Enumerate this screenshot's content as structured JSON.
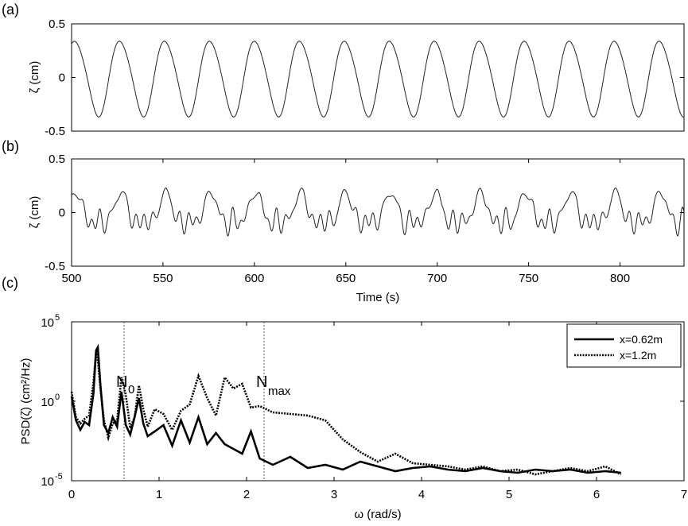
{
  "chart_data": [
    {
      "panel": "(a)",
      "type": "line",
      "ylabel": "ζ (cm)",
      "xlim": [
        500,
        835
      ],
      "ylim": [
        -0.5,
        0.5
      ],
      "yticks": [
        "0.5",
        "0",
        "-0.5"
      ],
      "ytick_values": [
        0.5,
        0,
        -0.5
      ],
      "series": [
        {
          "period_s": 24.6,
          "amplitude_cm": 0.35,
          "phase_start_s": 496,
          "x_range": [
            500,
            835
          ],
          "color": "#222222"
        }
      ]
    },
    {
      "panel": "(b)",
      "type": "line",
      "ylabel": "ζ (cm)",
      "xlabel": "Time (s)",
      "xlim": [
        500,
        835
      ],
      "ylim": [
        -0.5,
        0.5
      ],
      "yticks": [
        "0.5",
        "0",
        "-0.5"
      ],
      "ytick_values": [
        0.5,
        0,
        -0.5
      ],
      "xticks": [
        "500",
        "550",
        "600",
        "650",
        "700",
        "750",
        "800"
      ],
      "xtick_values": [
        500,
        550,
        600,
        650,
        700,
        750,
        800
      ],
      "series": [
        {
          "period_s": 24.6,
          "amplitude_cm": 0.22,
          "x_range": [
            500,
            835
          ],
          "color": "#222222"
        }
      ]
    },
    {
      "panel": "(c)",
      "type": "line",
      "xlabel": "ω (rad/s)",
      "ylabel": "PSD(ζ) (cm²/Hz)",
      "xlim": [
        0,
        7
      ],
      "ylim_log10": [
        -5,
        5
      ],
      "yscale": "log",
      "xticks": [
        "0",
        "1",
        "2",
        "3",
        "4",
        "5",
        "6",
        "7"
      ],
      "xtick_values": [
        0,
        1,
        2,
        3,
        4,
        5,
        6,
        7
      ],
      "yticks": [
        "10",
        "10",
        "10"
      ],
      "ytick_exponents": [
        "5",
        "0",
        "-5"
      ],
      "ytick_values_log10": [
        5,
        0,
        -5
      ],
      "vlines": [
        {
          "x": 0.6,
          "label": "N",
          "sub": "0"
        },
        {
          "x": 2.2,
          "label": "N",
          "sub": "max"
        }
      ],
      "legend": {
        "placement": "top-right"
      },
      "series": [
        {
          "name": "x=0.62m",
          "style": "solid",
          "x": [
            0.0,
            0.05,
            0.1,
            0.15,
            0.2,
            0.25,
            0.28,
            0.3,
            0.33,
            0.37,
            0.42,
            0.47,
            0.52,
            0.57,
            0.62,
            0.67,
            0.72,
            0.77,
            0.82,
            0.87,
            0.95,
            1.05,
            1.15,
            1.25,
            1.35,
            1.45,
            1.55,
            1.65,
            1.75,
            1.85,
            1.95,
            2.05,
            2.15,
            2.3,
            2.5,
            2.7,
            2.9,
            3.1,
            3.3,
            3.5,
            3.7,
            3.9,
            4.1,
            4.3,
            4.5,
            4.7,
            4.9,
            5.1,
            5.3,
            5.5,
            5.7,
            5.9,
            6.1,
            6.28
          ],
          "log10_y": [
            0.3,
            -1.2,
            -1.8,
            -1.3,
            -1.5,
            0.5,
            3.2,
            3.4,
            1.0,
            -1.5,
            -2.0,
            -1.0,
            -1.6,
            0.6,
            -1.5,
            -2.1,
            -1.0,
            0.2,
            -1.4,
            -2.2,
            -1.9,
            -1.5,
            -2.8,
            -1.2,
            -2.6,
            -1.0,
            -2.7,
            -2.0,
            -2.7,
            -3.0,
            -3.3,
            -1.9,
            -3.6,
            -4.0,
            -3.5,
            -4.2,
            -4.0,
            -4.3,
            -3.8,
            -4.1,
            -4.4,
            -4.2,
            -4.1,
            -4.3,
            -4.4,
            -4.2,
            -4.4,
            -4.5,
            -4.3,
            -4.4,
            -4.3,
            -4.5,
            -4.4,
            -4.5
          ],
          "color": "#000000"
        },
        {
          "name": "x=1.2m",
          "style": "dotted",
          "x": [
            0.0,
            0.05,
            0.1,
            0.15,
            0.2,
            0.25,
            0.28,
            0.3,
            0.33,
            0.37,
            0.42,
            0.47,
            0.52,
            0.57,
            0.62,
            0.67,
            0.72,
            0.77,
            0.82,
            0.87,
            0.95,
            1.05,
            1.15,
            1.25,
            1.35,
            1.45,
            1.55,
            1.65,
            1.75,
            1.85,
            1.95,
            2.05,
            2.15,
            2.3,
            2.5,
            2.7,
            2.9,
            3.1,
            3.3,
            3.5,
            3.7,
            3.9,
            4.1,
            4.3,
            4.5,
            4.7,
            4.9,
            5.1,
            5.3,
            5.5,
            5.7,
            5.9,
            6.1,
            6.28
          ],
          "log10_y": [
            0.6,
            -1.0,
            -1.4,
            -1.1,
            -0.9,
            1.2,
            3.1,
            2.6,
            0.8,
            -1.2,
            -2.3,
            -1.4,
            -1.2,
            1.5,
            0.4,
            -1.7,
            -1.0,
            1.0,
            -0.5,
            -1.6,
            -0.5,
            -0.8,
            -1.8,
            -0.6,
            -0.2,
            1.6,
            0.2,
            -0.9,
            1.5,
            0.8,
            1.1,
            -0.4,
            -0.3,
            -0.7,
            -0.8,
            -0.9,
            -1.2,
            -2.4,
            -3.2,
            -3.8,
            -3.3,
            -3.9,
            -4.0,
            -4.1,
            -4.3,
            -4.1,
            -4.4,
            -4.3,
            -4.6,
            -4.4,
            -4.2,
            -4.4,
            -4.1,
            -4.6
          ],
          "color": "#000000"
        }
      ]
    }
  ]
}
